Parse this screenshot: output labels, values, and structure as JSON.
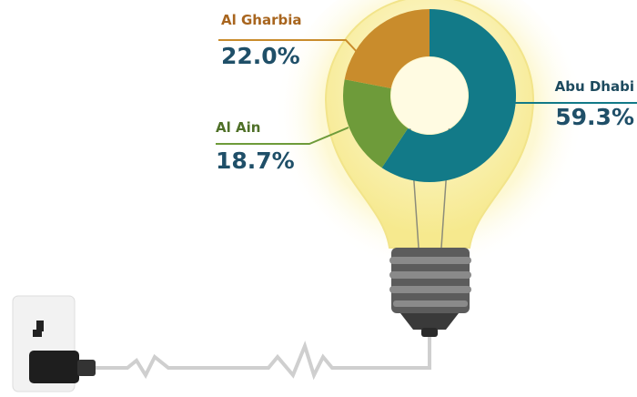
{
  "chart_data": {
    "type": "donut",
    "categories": [
      "Abu Dhabi",
      "Al Ain",
      "Al Gharbia"
    ],
    "values": [
      59.3,
      18.7,
      22.0
    ],
    "value_labels": [
      "59.3%",
      "18.7%",
      "22.0%"
    ],
    "colors": [
      "#127a88",
      "#6e9b3a",
      "#c98c2c"
    ]
  }
}
